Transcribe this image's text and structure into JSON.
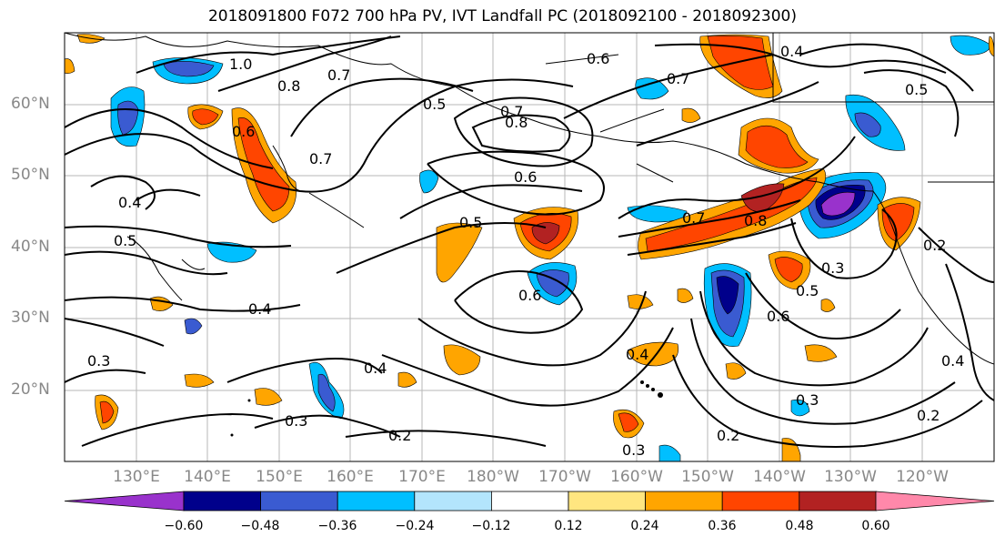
{
  "title": "2018091800 F072 700 hPa PV, IVT Landfall PC (2018092100 - 2018092300)",
  "lat_labels": [
    "60°N",
    "50°N",
    "40°N",
    "30°N",
    "20°N"
  ],
  "lon_labels": [
    "130°E",
    "140°E",
    "150°E",
    "160°E",
    "170°E",
    "180°W",
    "170°W",
    "160°W",
    "150°W",
    "140°W",
    "130°W",
    "120°W"
  ],
  "contour_labels": [
    "1.0",
    "0.8",
    "0.7",
    "0.6",
    "0.5",
    "0.7",
    "0.8",
    "0.6",
    "0.7",
    "0.4",
    "0.5",
    "0.6",
    "0.7",
    "0.5",
    "0.4",
    "0.6",
    "0.5",
    "0.7",
    "0.8",
    "0.3",
    "0.6",
    "0.4",
    "0.4",
    "0.5",
    "0.3",
    "0.2",
    "0.3",
    "0.4",
    "0.2",
    "0.3",
    "0.2",
    "0.4",
    "0.3",
    "0.2"
  ],
  "colorbar": {
    "ticks": [
      "−0.60",
      "−0.48",
      "−0.36",
      "−0.24",
      "−0.12",
      "0.12",
      "0.24",
      "0.36",
      "0.48",
      "0.60"
    ],
    "colors": [
      "#9932cc",
      "#00008b",
      "#3a5bd1",
      "#00bfff",
      "#b3e5fc",
      "#ffffff",
      "#ffe680",
      "#ffa500",
      "#ff4500",
      "#b22222",
      "#ff88aa"
    ]
  }
}
